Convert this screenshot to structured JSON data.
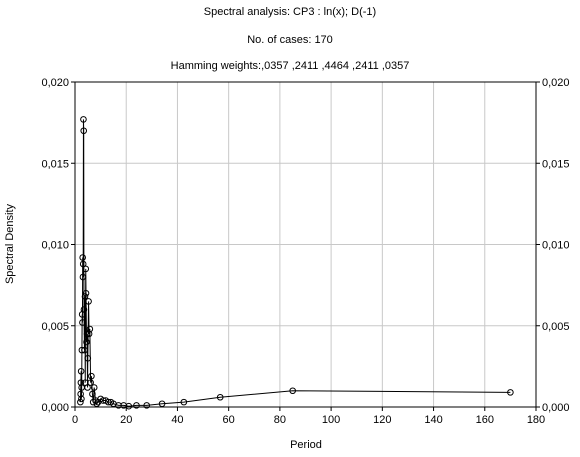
{
  "chart_data": {
    "type": "line",
    "title_lines": [
      "Spectral analysis: CP3    : ln(x); D(-1)",
      "No. of cases: 170",
      "Hamming weights:,0357 ,2411 ,4464 ,2411 ,0357"
    ],
    "xlabel": "Period",
    "ylabel": "Spectral Density",
    "xlim": [
      0,
      180
    ],
    "ylim": [
      0,
      0.02
    ],
    "x_ticks": [
      0,
      20,
      40,
      60,
      80,
      100,
      120,
      140,
      160,
      180
    ],
    "y_ticks": [
      0,
      0.005,
      0.01,
      0.015,
      0.02
    ],
    "x_tick_labels": [
      "0",
      "20",
      "40",
      "60",
      "80",
      "100",
      "120",
      "140",
      "160",
      "180"
    ],
    "y_tick_labels": [
      "0,000",
      "0,005",
      "0,010",
      "0,015",
      "0,020"
    ],
    "grid": true,
    "marker": "circle",
    "series": [
      {
        "points": [
          [
            2.1,
            0.0003
          ],
          [
            2.2,
            0.0008
          ],
          [
            2.3,
            0.0015
          ],
          [
            2.4,
            0.0022
          ],
          [
            2.5,
            0.0005
          ],
          [
            2.6,
            0.0012
          ],
          [
            2.7,
            0.0035
          ],
          [
            2.8,
            0.0057
          ],
          [
            2.9,
            0.0052
          ],
          [
            3.0,
            0.0092
          ],
          [
            3.1,
            0.008
          ],
          [
            3.2,
            0.0088
          ],
          [
            3.3,
            0.0177
          ],
          [
            3.4,
            0.017
          ],
          [
            3.5,
            0.006
          ],
          [
            3.7,
            0.0035
          ],
          [
            3.9,
            0.0068
          ],
          [
            4.0,
            0.0015
          ],
          [
            4.2,
            0.0085
          ],
          [
            4.3,
            0.007
          ],
          [
            4.5,
            0.004
          ],
          [
            4.7,
            0.0045
          ],
          [
            4.9,
            0.0012
          ],
          [
            5.0,
            0.003
          ],
          [
            5.3,
            0.0065
          ],
          [
            5.5,
            0.0045
          ],
          [
            5.8,
            0.0048
          ],
          [
            6.1,
            0.0015
          ],
          [
            6.4,
            0.0019
          ],
          [
            6.8,
            0.0008
          ],
          [
            7.1,
            0.0003
          ],
          [
            7.5,
            0.0012
          ],
          [
            8.0,
            0.0004
          ],
          [
            8.5,
            0.0002
          ],
          [
            9.0,
            0.0003
          ],
          [
            10.0,
            0.0005
          ],
          [
            11.0,
            0.0004
          ],
          [
            12.0,
            0.0004
          ],
          [
            13.0,
            0.0003
          ],
          [
            14.0,
            0.0003
          ],
          [
            15.0,
            0.0002
          ],
          [
            17.0,
            0.0001
          ],
          [
            19.0,
            0.0001
          ],
          [
            21.0,
            5e-05
          ],
          [
            24.0,
            0.0001
          ],
          [
            28.0,
            0.0001
          ],
          [
            34.0,
            0.0002
          ],
          [
            42.5,
            0.0003
          ],
          [
            56.7,
            0.0006
          ],
          [
            85.0,
            0.001
          ],
          [
            170.0,
            0.0009
          ]
        ]
      }
    ]
  }
}
